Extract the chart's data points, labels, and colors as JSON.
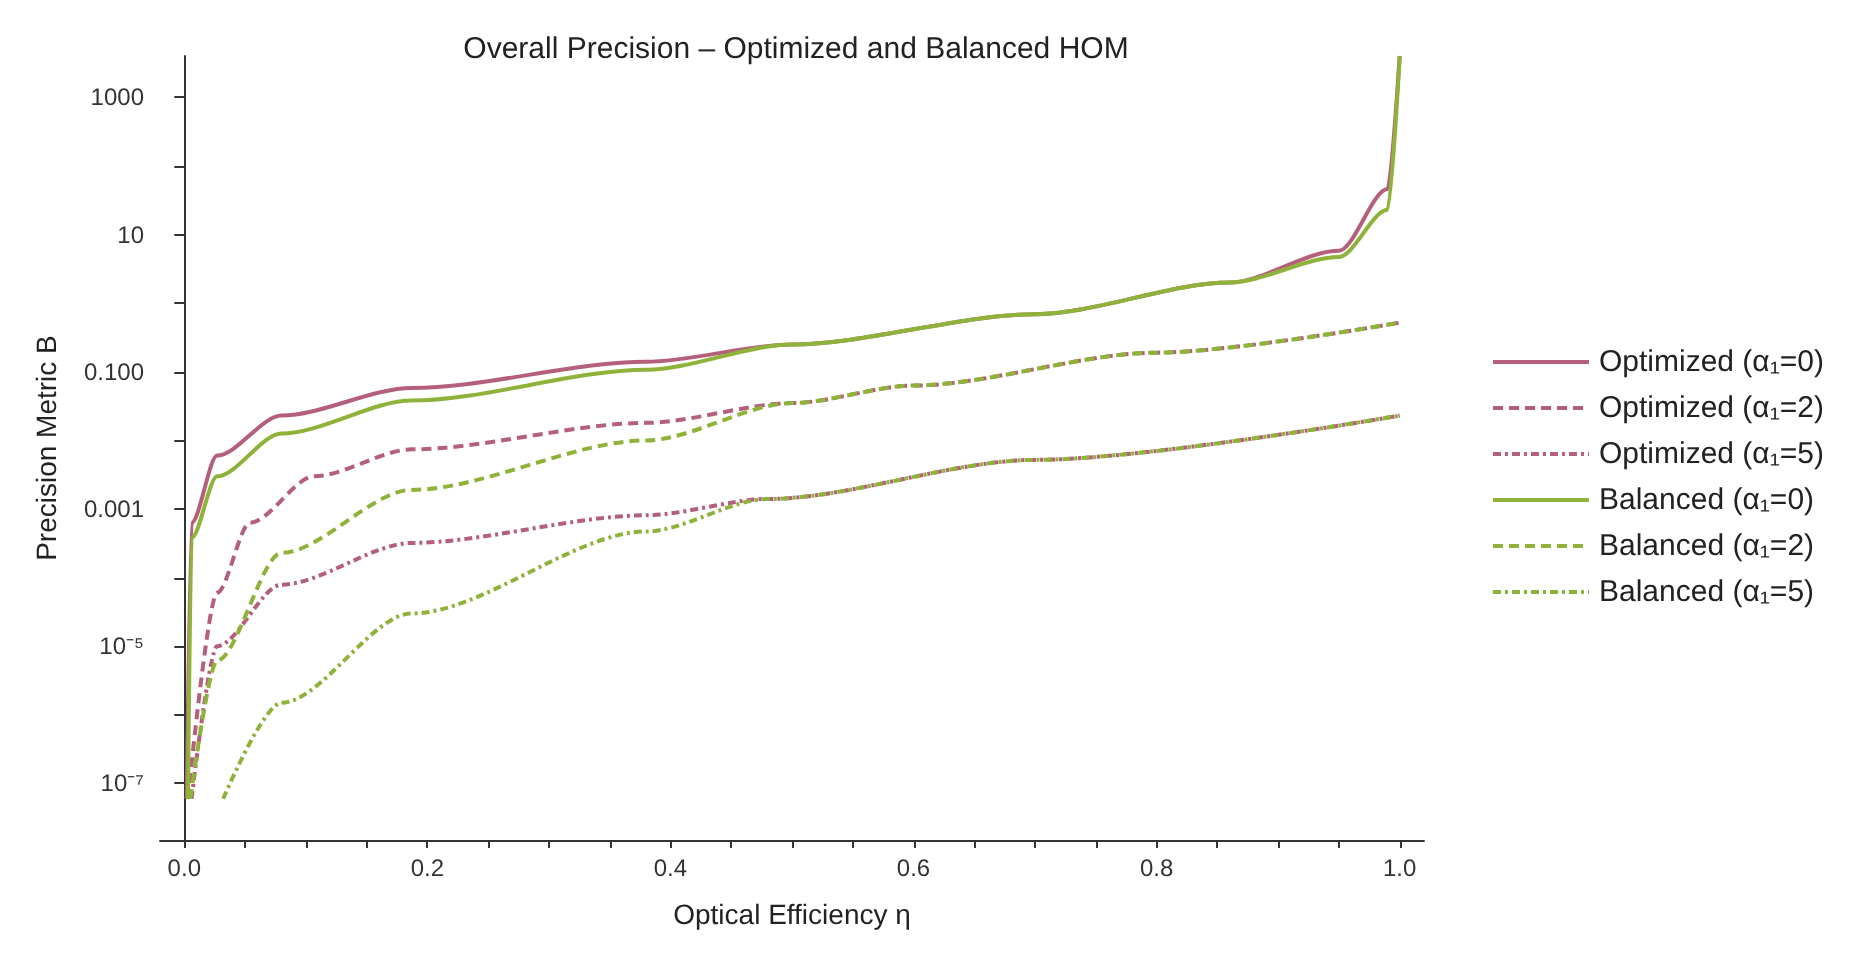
{
  "chart_data": {
    "type": "line",
    "title": "Overall Precision – Optimized and Balanced HOM",
    "xlabel": "Optical Efficiency η",
    "ylabel": "Precision Metric B",
    "log": "y",
    "grid": false,
    "legend": "right",
    "marker": "none",
    "xlim": [
      -0.02,
      1.02
    ],
    "ylim": [
      1.5e-08,
      4000
    ],
    "xticks": [
      {
        "value": 0,
        "label": "0.0"
      },
      {
        "value": 0.05,
        "label": null
      },
      {
        "value": 0.1,
        "label": null
      },
      {
        "value": 0.15,
        "label": null
      },
      {
        "value": 0.2,
        "label": "0.2"
      },
      {
        "value": 0.25,
        "label": null
      },
      {
        "value": 0.3,
        "label": null
      },
      {
        "value": 0.35,
        "label": null
      },
      {
        "value": 0.4,
        "label": "0.4"
      },
      {
        "value": 0.45,
        "label": null
      },
      {
        "value": 0.5,
        "label": null
      },
      {
        "value": 0.55,
        "label": null
      },
      {
        "value": 0.6,
        "label": "0.6"
      },
      {
        "value": 0.65,
        "label": null
      },
      {
        "value": 0.7,
        "label": null
      },
      {
        "value": 0.75,
        "label": null
      },
      {
        "value": 0.8,
        "label": "0.8"
      },
      {
        "value": 0.85,
        "label": null
      },
      {
        "value": 0.9,
        "label": null
      },
      {
        "value": 0.95,
        "label": null
      },
      {
        "value": 1,
        "label": "1.0"
      }
    ],
    "yticks": [
      {
        "value": 1e-07,
        "label": "10⁻⁷"
      },
      {
        "value": 1e-06,
        "label": null
      },
      {
        "value": 1e-05,
        "label": "10⁻⁵"
      },
      {
        "value": 0.0001,
        "label": null
      },
      {
        "value": 0.001,
        "label": "0.001"
      },
      {
        "value": 0.01,
        "label": null
      },
      {
        "value": 0.1,
        "label": "0.100"
      },
      {
        "value": 1,
        "label": null
      },
      {
        "value": 10,
        "label": "10"
      },
      {
        "value": 100,
        "label": null
      },
      {
        "value": 1000,
        "label": "1000"
      }
    ],
    "series": [
      {
        "name": "Optimized (α₁=0)",
        "color": "#b5607a",
        "line_style": "solid",
        "x": [
          0.002,
          0.006,
          0.027,
          0.08,
          0.187,
          0.38,
          0.5,
          0.7,
          0.86,
          0.95,
          0.99,
          1.0
        ],
        "values": [
          6e-08,
          0.00063,
          0.006,
          0.023,
          0.058,
          0.14,
          0.25,
          0.69,
          2.0,
          5.8,
          46,
          4000
        ]
      },
      {
        "name": "Optimized (α₁=2)",
        "color": "#b5607a",
        "line_style": "dashed",
        "x": [
          0.003,
          0.027,
          0.054,
          0.107,
          0.187,
          0.38,
          0.5,
          0.6,
          0.8,
          1.0
        ],
        "values": [
          6e-08,
          6e-05,
          0.00063,
          0.003,
          0.0074,
          0.018,
          0.035,
          0.063,
          0.19,
          0.52
        ]
      },
      {
        "name": "Optimized (α₁=5)",
        "color": "#b5607a",
        "line_style": "dotted",
        "x": [
          0.006,
          0.027,
          0.08,
          0.187,
          0.38,
          0.48,
          0.7,
          1.0
        ],
        "values": [
          6e-08,
          1e-05,
          7.9e-05,
          0.00032,
          0.00081,
          0.0014,
          0.0052,
          0.023
        ]
      },
      {
        "name": "Balanced (α₁=0)",
        "color": "#8fb33a",
        "line_style": "solid",
        "x": [
          0.003,
          0.006,
          0.027,
          0.08,
          0.187,
          0.38,
          0.5,
          0.7,
          0.86,
          0.95,
          0.99,
          1.0
        ],
        "values": [
          6e-08,
          0.00038,
          0.003,
          0.0126,
          0.038,
          0.107,
          0.25,
          0.69,
          2.0,
          4.7,
          23,
          4000
        ]
      },
      {
        "name": "Balanced (α₁=2)",
        "color": "#8fb33a",
        "line_style": "dashed",
        "x": [
          0.005,
          0.027,
          0.08,
          0.187,
          0.38,
          0.5,
          0.6,
          0.8,
          1.0
        ],
        "values": [
          6e-08,
          6.2e-06,
          0.00023,
          0.0019,
          0.01,
          0.035,
          0.063,
          0.19,
          0.52
        ]
      },
      {
        "name": "Balanced (α₁=5)",
        "color": "#8fb33a",
        "line_style": "dotted",
        "x": [
          0.032,
          0.08,
          0.187,
          0.38,
          0.48,
          0.7,
          1.0
        ],
        "values": [
          6e-08,
          1.5e-06,
          3e-05,
          0.00047,
          0.0014,
          0.0052,
          0.023
        ]
      }
    ]
  }
}
